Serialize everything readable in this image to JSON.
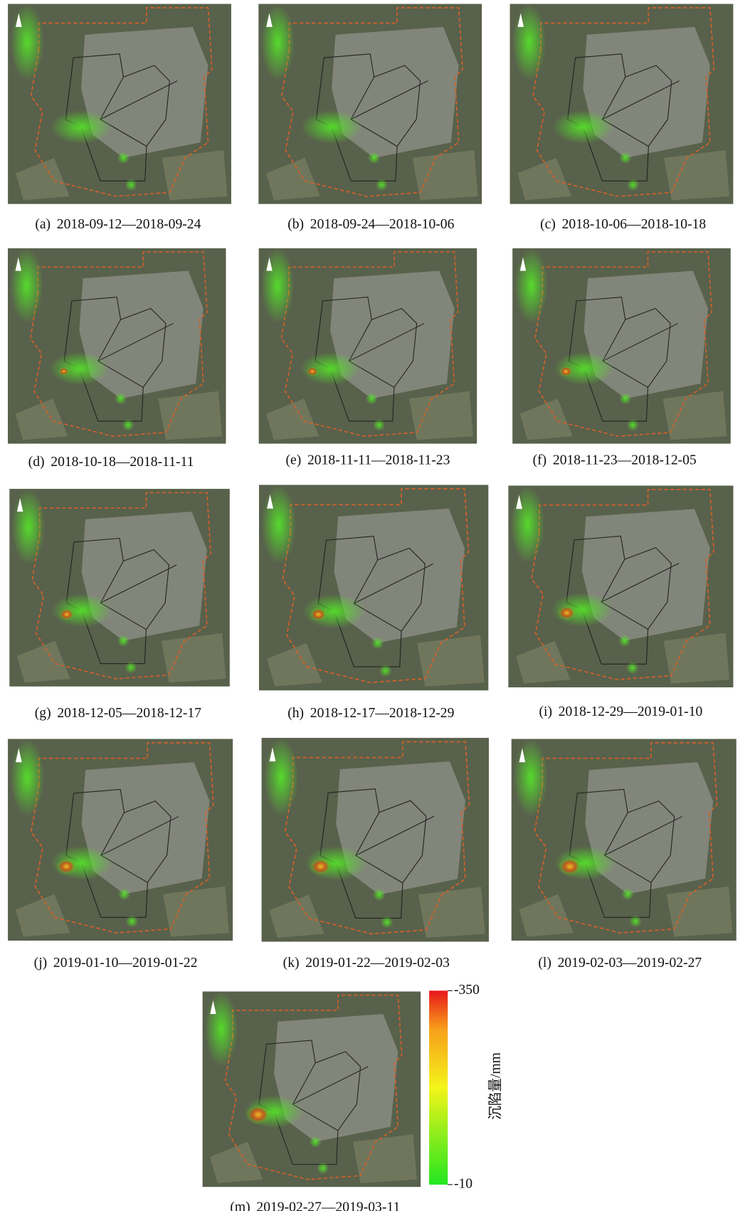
{
  "panels": [
    {
      "label": "(a)",
      "dates": "2018-09-12—2018-09-24"
    },
    {
      "label": "(b)",
      "dates": "2018-09-24—2018-10-06"
    },
    {
      "label": "(c)",
      "dates": "2018-10-06—2018-10-18"
    },
    {
      "label": "(d)",
      "dates": "2018-10-18—2018-11-11"
    },
    {
      "label": "(e)",
      "dates": "2018-11-11—2018-11-23"
    },
    {
      "label": "(f)",
      "dates": "2018-11-23—2018-12-05"
    },
    {
      "label": "(g)",
      "dates": "2018-12-05—2018-12-17"
    },
    {
      "label": "(h)",
      "dates": "2018-12-17—2018-12-29"
    },
    {
      "label": "(i)",
      "dates": "2018-12-29—2019-01-10"
    },
    {
      "label": "(j)",
      "dates": "2019-01-10—2019-01-22"
    },
    {
      "label": "(k)",
      "dates": "2019-01-22—2019-02-03"
    },
    {
      "label": "(l)",
      "dates": "2019-02-03—2019-02-27"
    },
    {
      "label": "(m)",
      "dates": "2019-02-27—2019-03-11"
    }
  ],
  "colorbar": {
    "title": "沉陷量/mm",
    "lim": [
      -10,
      -350
    ],
    "ticks": [
      -350,
      -10
    ]
  }
}
